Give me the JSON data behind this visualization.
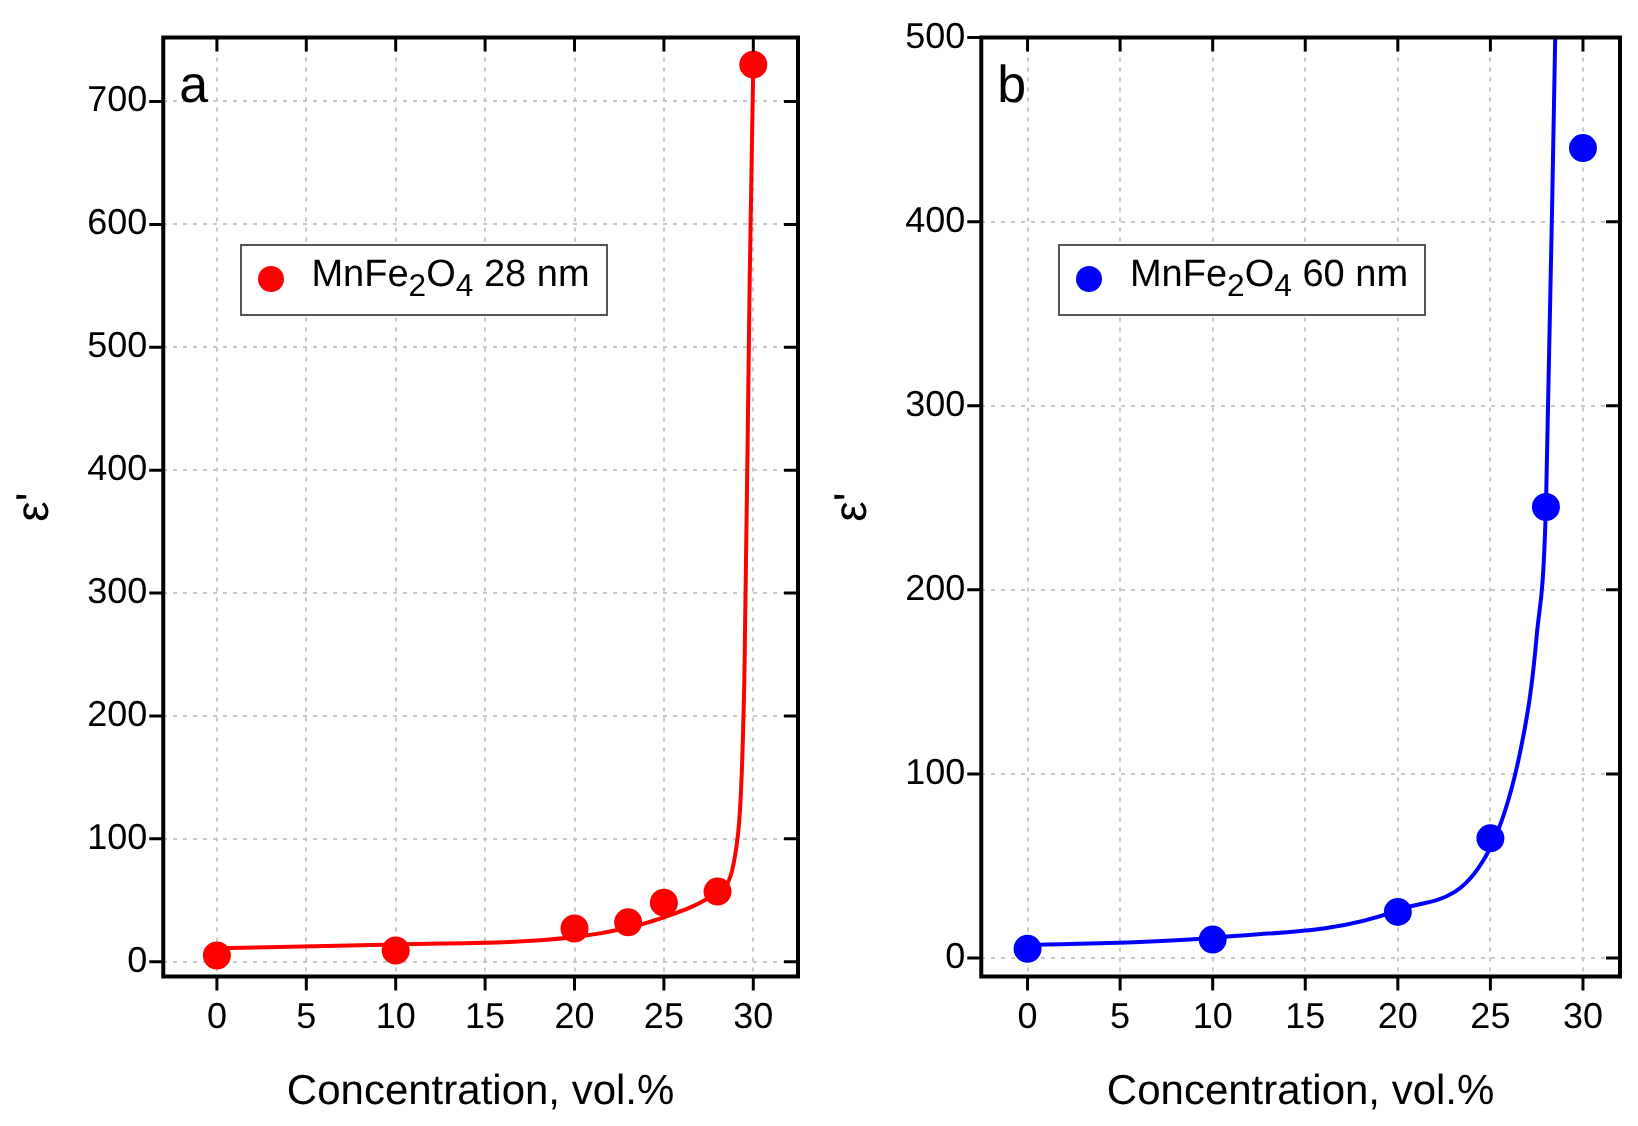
{
  "chart_data": [
    {
      "type": "scatter",
      "xlabel": "Concentration, vol.%",
      "ylabel": "ε'",
      "annotations": [
        "a"
      ],
      "xlim": [
        -3,
        32.5
      ],
      "xticks": [
        0,
        5,
        10,
        15,
        20,
        25,
        30
      ],
      "ylim": [
        -12,
        752
      ],
      "yticks": [
        0,
        100,
        200,
        300,
        400,
        500,
        600,
        700
      ],
      "grid": true,
      "legend": "top left",
      "marker": "circle",
      "series": [
        {
          "type": "line",
          "color": "#ff0000",
          "marker": "none",
          "line_style": "solid",
          "x": [
            0,
            10,
            20,
            25,
            28,
            29,
            29.5,
            29.8,
            30
          ],
          "values": [
            11,
            14,
            20,
            36,
            57,
            88,
            230,
            557,
            730
          ]
        },
        {
          "type": "scatter",
          "name": "MnFe$_{2}$O$_{4}$ 28 nm",
          "color": "#ff0000",
          "x": [
            0,
            10,
            20,
            23,
            25,
            28,
            30
          ],
          "values": [
            5,
            9,
            27,
            32,
            48,
            57,
            730
          ]
        }
      ]
    },
    {
      "type": "scatter",
      "xlabel": "Concentration, vol.%",
      "ylabel": "ε'",
      "annotations": [
        "b"
      ],
      "xlim": [
        -2.5,
        32
      ],
      "xticks": [
        0,
        5,
        10,
        15,
        20,
        25,
        30
      ],
      "ylim": [
        -10,
        500
      ],
      "yticks": [
        0,
        100,
        200,
        300,
        400,
        500
      ],
      "grid": true,
      "legend": "top left",
      "marker": "circle",
      "series": [
        {
          "type": "line",
          "color": "#0000ff",
          "marker": "none",
          "line_style": "solid",
          "x": [
            0,
            10,
            20,
            25,
            27,
            27.5,
            28,
            28.5
          ],
          "values": [
            7,
            11,
            26,
            60,
            133,
            175,
            245,
            500
          ]
        },
        {
          "type": "scatter",
          "name": "MnFe$_{2}$O$_{4}$ 60 nm",
          "color": "#0000ff",
          "x": [
            0,
            10,
            20,
            25,
            28,
            30
          ],
          "values": [
            5,
            10,
            25,
            65,
            245,
            440
          ]
        }
      ]
    }
  ]
}
